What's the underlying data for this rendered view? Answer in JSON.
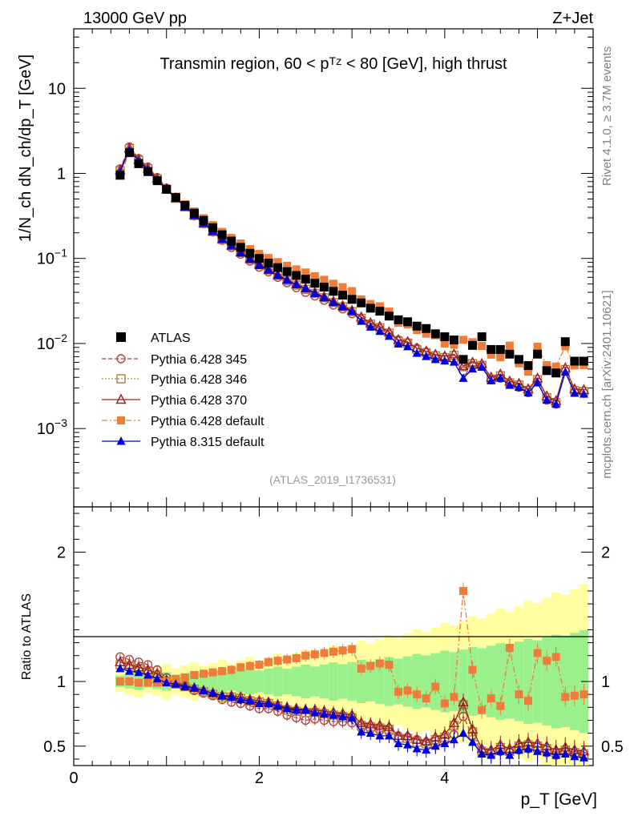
{
  "header": {
    "left": "13000 GeV pp",
    "right": "Z+Jet"
  },
  "side_labels": {
    "rivet": "Rivet 4.1.0, ≥ 3.7M events",
    "mcplots": "mcplots.cern.ch [arXiv:2401.10621]"
  },
  "chart_data": {
    "type": "scatter",
    "title": "Transmin region, 60 < p_T^Z < 80 [GeV], high thrust",
    "analysis_id": "(ATLAS_2019_I1736531)",
    "xlabel": "p_T [GeV]",
    "ylabel": "1/N_ch dN_ch/dp_T [GeV]",
    "ratio_ylabel": "Ratio to ATLAS",
    "xlim": [
      0,
      5.6
    ],
    "ylim": [
      0.00012,
      50
    ],
    "ratio_ylim": [
      0.35,
      2.35
    ],
    "yscale": "log",
    "x_ticks": [
      "0",
      "2",
      "4"
    ],
    "y_ticks": [
      "10^-3",
      "10^-2",
      "10^-1",
      "1",
      "10"
    ],
    "ratio_ticks": [
      "0.5",
      "1",
      "2"
    ],
    "legend": [
      "ATLAS",
      "Pythia 6.428 345",
      "Pythia 6.428 346",
      "Pythia 6.428 370",
      "Pythia 6.428 default",
      "Pythia 8.315 default"
    ],
    "x": [
      0.5,
      0.6,
      0.7,
      0.8,
      0.9,
      1.0,
      1.1,
      1.2,
      1.3,
      1.4,
      1.5,
      1.6,
      1.7,
      1.8,
      1.9,
      2.0,
      2.1,
      2.2,
      2.3,
      2.4,
      2.5,
      2.6,
      2.7,
      2.8,
      2.9,
      3.0,
      3.1,
      3.2,
      3.3,
      3.4,
      3.5,
      3.6,
      3.7,
      3.8,
      3.9,
      4.0,
      4.1,
      4.2,
      4.3,
      4.4,
      4.5,
      4.6,
      4.7,
      4.8,
      4.9,
      5.0,
      5.1,
      5.2,
      5.3,
      5.4,
      5.5
    ],
    "series": [
      {
        "name": "ATLAS",
        "color": "#000000",
        "marker": "square-filled",
        "values": [
          0.95,
          1.75,
          1.3,
          1.05,
          0.82,
          0.65,
          0.52,
          0.42,
          0.34,
          0.28,
          0.23,
          0.19,
          0.16,
          0.135,
          0.115,
          0.1,
          0.088,
          0.078,
          0.07,
          0.063,
          0.057,
          0.051,
          0.046,
          0.041,
          0.037,
          0.033,
          0.03,
          0.026,
          0.024,
          0.021,
          0.019,
          0.018,
          0.016,
          0.015,
          0.013,
          0.012,
          0.011,
          0.0065,
          0.0095,
          0.012,
          0.0085,
          0.0085,
          0.0075,
          0.0065,
          0.0055,
          0.0075,
          0.0048,
          0.0045,
          0.0105,
          0.0062,
          0.0062
        ]
      },
      {
        "name": "Pythia 6.428 345",
        "color": "#b5413e",
        "marker": "circle-open",
        "ratio": [
          1.19,
          1.17,
          1.15,
          1.13,
          1.09,
          1.03,
          0.99,
          0.97,
          0.93,
          0.91,
          0.89,
          0.86,
          0.84,
          0.83,
          0.81,
          0.79,
          0.79,
          0.77,
          0.74,
          0.72,
          0.7,
          0.71,
          0.7,
          0.69,
          0.69,
          0.68,
          0.64,
          0.63,
          0.62,
          0.61,
          0.58,
          0.57,
          0.55,
          0.53,
          0.51,
          0.54,
          0.59,
          0.73,
          0.58,
          0.45,
          0.44,
          0.46,
          0.45,
          0.47,
          0.48,
          0.47,
          0.45,
          0.43,
          0.45,
          0.43,
          0.42
        ]
      },
      {
        "name": "Pythia 6.428 346",
        "color": "#b08040",
        "marker": "square-open",
        "ratio": [
          1.13,
          1.12,
          1.1,
          1.08,
          1.05,
          1.0,
          0.98,
          0.96,
          0.94,
          0.92,
          0.9,
          0.88,
          0.88,
          0.87,
          0.85,
          0.84,
          0.83,
          0.81,
          0.78,
          0.77,
          0.76,
          0.76,
          0.75,
          0.74,
          0.73,
          0.72,
          0.66,
          0.65,
          0.64,
          0.63,
          0.56,
          0.56,
          0.53,
          0.52,
          0.55,
          0.57,
          0.66,
          0.82,
          0.61,
          0.46,
          0.45,
          0.49,
          0.46,
          0.5,
          0.51,
          0.5,
          0.48,
          0.45,
          0.47,
          0.45,
          0.44
        ]
      },
      {
        "name": "Pythia 6.428 370",
        "color": "#a01e1e",
        "marker": "triangle-open",
        "ratio": [
          1.15,
          1.13,
          1.11,
          1.09,
          1.06,
          1.01,
          0.99,
          0.97,
          0.95,
          0.93,
          0.91,
          0.89,
          0.89,
          0.88,
          0.86,
          0.85,
          0.84,
          0.82,
          0.8,
          0.79,
          0.78,
          0.78,
          0.77,
          0.76,
          0.75,
          0.74,
          0.68,
          0.67,
          0.66,
          0.65,
          0.58,
          0.58,
          0.55,
          0.54,
          0.57,
          0.59,
          0.68,
          0.84,
          0.63,
          0.48,
          0.47,
          0.51,
          0.48,
          0.52,
          0.53,
          0.52,
          0.5,
          0.47,
          0.49,
          0.47,
          0.46
        ]
      },
      {
        "name": "Pythia 6.428 default",
        "color": "#f07c3c",
        "marker": "square-filled",
        "ratio": [
          1.0,
          1.0,
          0.99,
          0.99,
          0.99,
          1.0,
          1.02,
          1.03,
          1.05,
          1.06,
          1.07,
          1.08,
          1.09,
          1.11,
          1.12,
          1.13,
          1.15,
          1.16,
          1.17,
          1.18,
          1.2,
          1.21,
          1.22,
          1.23,
          1.24,
          1.25,
          1.1,
          1.12,
          1.14,
          1.13,
          0.92,
          0.93,
          0.9,
          0.87,
          0.96,
          0.83,
          0.88,
          1.7,
          1.09,
          0.78,
          0.87,
          0.81,
          1.26,
          0.9,
          0.85,
          1.22,
          1.16,
          1.19,
          0.88,
          0.89,
          0.9
        ]
      },
      {
        "name": "Pythia 8.315 default",
        "color": "#0000dd",
        "marker": "triangle-filled",
        "ratio": [
          1.1,
          1.08,
          1.07,
          1.05,
          1.02,
          0.99,
          0.98,
          0.96,
          0.95,
          0.93,
          0.91,
          0.89,
          0.88,
          0.86,
          0.85,
          0.83,
          0.83,
          0.81,
          0.79,
          0.78,
          0.78,
          0.76,
          0.75,
          0.74,
          0.73,
          0.72,
          0.61,
          0.6,
          0.58,
          0.58,
          0.52,
          0.51,
          0.48,
          0.47,
          0.5,
          0.52,
          0.55,
          0.6,
          0.53,
          0.44,
          0.43,
          0.46,
          0.43,
          0.47,
          0.48,
          0.46,
          0.45,
          0.43,
          0.44,
          0.42,
          0.41
        ]
      }
    ]
  }
}
